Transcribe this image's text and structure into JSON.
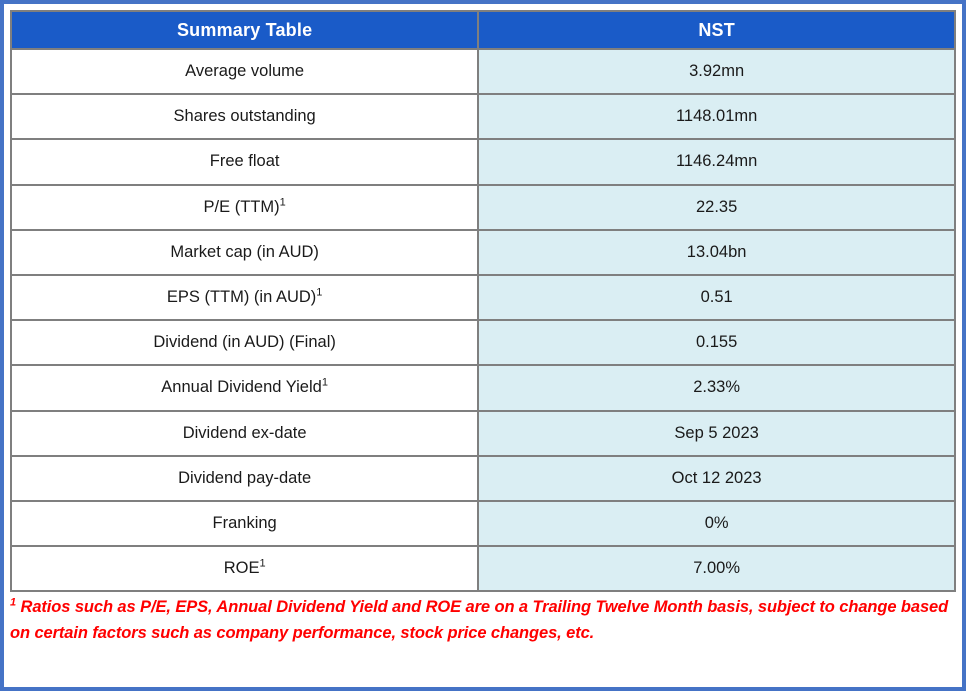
{
  "colors": {
    "frame_border": "#4573C6",
    "header_bg": "#1A5BC8",
    "header_text": "#FFFFFF",
    "value_cell_bg": "#DAEEF3",
    "label_cell_bg": "#FFFFFF",
    "grid_border": "#7F7F7F",
    "footnote_text": "#FF0000",
    "body_text": "#1A1A1A"
  },
  "table": {
    "header": {
      "col1": "Summary Table",
      "col2": "NST"
    },
    "rows": [
      {
        "label": "Average volume",
        "sup": "",
        "value": "3.92mn"
      },
      {
        "label": "Shares outstanding",
        "sup": "",
        "value": "1148.01mn"
      },
      {
        "label": "Free float",
        "sup": "",
        "value": "1146.24mn"
      },
      {
        "label": "P/E (TTM)",
        "sup": "1",
        "value": "22.35"
      },
      {
        "label": "Market cap (in AUD)",
        "sup": "",
        "value": "13.04bn"
      },
      {
        "label": "EPS (TTM) (in AUD)",
        "sup": "1",
        "value": "0.51"
      },
      {
        "label": "Dividend (in AUD) (Final)",
        "sup": "",
        "value": "0.155"
      },
      {
        "label": "Annual Dividend Yield",
        "sup": "1",
        "value": "2.33%"
      },
      {
        "label": "Dividend ex-date",
        "sup": "",
        "value": "Sep 5 2023"
      },
      {
        "label": "Dividend pay-date",
        "sup": "",
        "value": "Oct 12 2023"
      },
      {
        "label": "Franking",
        "sup": "",
        "value": "0%"
      },
      {
        "label": "ROE",
        "sup": "1",
        "value": "7.00%"
      }
    ]
  },
  "footnote": {
    "marker": "1",
    "text": "Ratios such as P/E, EPS, Annual Dividend Yield and ROE are on a Trailing Twelve Month basis, subject to change based on certain factors such as company performance, stock price changes, etc."
  },
  "chart_data": {
    "type": "table",
    "title": "Summary Table",
    "columns": [
      "Summary Table",
      "NST"
    ],
    "rows": [
      [
        "Average volume",
        "3.92mn"
      ],
      [
        "Shares outstanding",
        "1148.01mn"
      ],
      [
        "Free float",
        "1146.24mn"
      ],
      [
        "P/E (TTM)1",
        "22.35"
      ],
      [
        "Market cap (in AUD)",
        "13.04bn"
      ],
      [
        "EPS (TTM) (in AUD)1",
        "0.51"
      ],
      [
        "Dividend (in AUD) (Final)",
        "0.155"
      ],
      [
        "Annual Dividend Yield1",
        "2.33%"
      ],
      [
        "Dividend ex-date",
        "Sep 5 2023"
      ],
      [
        "Dividend pay-date",
        "Oct 12 2023"
      ],
      [
        "Franking",
        "0%"
      ],
      [
        "ROE1",
        "7.00%"
      ]
    ],
    "footnote": "1 Ratios such as P/E, EPS, Annual Dividend Yield and ROE are on a Trailing Twelve Month basis, subject to change based on certain factors such as company performance, stock price changes, etc."
  }
}
